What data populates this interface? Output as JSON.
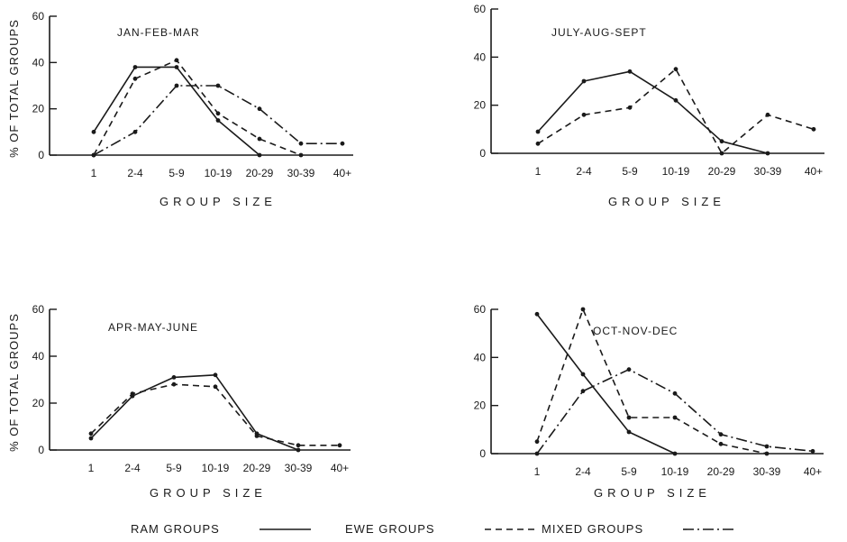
{
  "figure": {
    "legend": [
      {
        "label": "RAM GROUPS",
        "style": "solid"
      },
      {
        "label": "EWE GROUPS",
        "style": "dashed"
      },
      {
        "label": "MIXED GROUPS",
        "style": "dashdot"
      }
    ]
  },
  "chart_data": [
    {
      "type": "line",
      "title": "JAN-FEB-MAR",
      "xlabel": "GROUP SIZE",
      "ylabel": "% OF TOTAL GROUPS",
      "categories": [
        "1",
        "2-4",
        "5-9",
        "10-19",
        "20-29",
        "30-39",
        "40+"
      ],
      "ylim": [
        0,
        60
      ],
      "yticks": [
        0,
        20,
        40,
        60
      ],
      "series": [
        {
          "name": "RAM GROUPS",
          "style": "solid",
          "values": [
            10,
            38,
            38,
            15,
            0,
            null,
            null
          ]
        },
        {
          "name": "EWE GROUPS",
          "style": "dashed",
          "values": [
            0,
            33,
            41,
            18,
            7,
            0,
            null
          ]
        },
        {
          "name": "MIXED GROUPS",
          "style": "dashdot",
          "values": [
            0,
            10,
            30,
            30,
            20,
            5,
            5
          ]
        }
      ]
    },
    {
      "type": "line",
      "title": "JULY-AUG-SEPT",
      "xlabel": "GROUP SIZE",
      "ylabel": "",
      "categories": [
        "1",
        "2-4",
        "5-9",
        "10-19",
        "20-29",
        "30-39",
        "40+"
      ],
      "ylim": [
        0,
        60
      ],
      "yticks": [
        0,
        20,
        40,
        60
      ],
      "series": [
        {
          "name": "RAM GROUPS",
          "style": "solid",
          "values": [
            9,
            30,
            34,
            22,
            5,
            0,
            null
          ]
        },
        {
          "name": "EWE GROUPS",
          "style": "dashed",
          "values": [
            4,
            16,
            19,
            35,
            0,
            16,
            10
          ]
        }
      ]
    },
    {
      "type": "line",
      "title": "APR-MAY-JUNE",
      "xlabel": "GROUP SIZE",
      "ylabel": "% OF TOTAL GROUPS",
      "categories": [
        "1",
        "2-4",
        "5-9",
        "10-19",
        "20-29",
        "30-39",
        "40+"
      ],
      "ylim": [
        0,
        60
      ],
      "yticks": [
        0,
        20,
        40,
        60
      ],
      "series": [
        {
          "name": "RAM GROUPS",
          "style": "solid",
          "values": [
            5,
            23,
            31,
            32,
            7,
            0,
            null
          ]
        },
        {
          "name": "EWE GROUPS",
          "style": "dashed",
          "values": [
            7,
            24,
            28,
            27,
            6,
            2,
            2
          ]
        }
      ]
    },
    {
      "type": "line",
      "title": "OCT-NOV-DEC",
      "xlabel": "GROUP SIZE",
      "ylabel": "",
      "categories": [
        "1",
        "2-4",
        "5-9",
        "10-19",
        "20-29",
        "30-39",
        "40+"
      ],
      "ylim": [
        0,
        60
      ],
      "yticks": [
        0,
        20,
        40,
        60
      ],
      "series": [
        {
          "name": "RAM GROUPS",
          "style": "solid",
          "values": [
            58,
            33,
            9,
            0,
            null,
            null,
            null
          ]
        },
        {
          "name": "EWE GROUPS",
          "style": "dashed",
          "values": [
            5,
            60,
            15,
            15,
            4,
            0,
            null
          ]
        },
        {
          "name": "MIXED GROUPS",
          "style": "dashdot",
          "values": [
            0,
            26,
            35,
            25,
            8,
            3,
            1
          ]
        }
      ]
    }
  ]
}
